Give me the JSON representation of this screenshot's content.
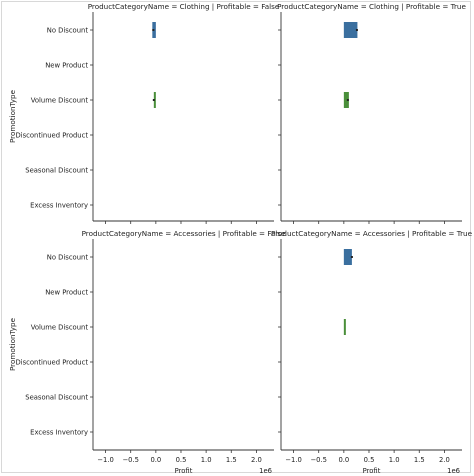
{
  "chart_data": {
    "type": "bar",
    "orientation": "horizontal",
    "figure_ylabel": "PromotionType",
    "categories": [
      "No Discount",
      "New Product",
      "Volume Discount",
      "Discontinued Product",
      "Seasonal Discount",
      "Excess Inventory"
    ],
    "xlabel": "Profit",
    "x_multiplier": "1e6",
    "xlim": [
      -1.25,
      2.35
    ],
    "xticks": [
      -1.0,
      -0.5,
      0.0,
      0.5,
      1.0,
      1.5,
      2.0
    ],
    "xtick_labels": [
      "−1.0",
      "−0.5",
      "0.0",
      "0.5",
      "1.0",
      "1.5",
      "2.0"
    ],
    "grid": false,
    "colors": {
      "No Discount": "#3a6f9f",
      "Volume Discount": "#4a8f3a",
      "error_bar": "#222222"
    },
    "panels": [
      {
        "title": "ProductCategoryName = Clothing | Profitable = False",
        "bars": [
          {
            "category": "No Discount",
            "start": -0.07,
            "end": 0.0,
            "point": -0.05
          },
          {
            "category": "Volume Discount",
            "start": -0.04,
            "end": 0.0,
            "point": -0.04
          }
        ]
      },
      {
        "title": "ProductCategoryName = Clothing | Profitable = True",
        "bars": [
          {
            "category": "No Discount",
            "start": 0.0,
            "end": 0.27,
            "point": 0.26
          },
          {
            "category": "Volume Discount",
            "start": 0.0,
            "end": 0.1,
            "point": 0.08
          }
        ]
      },
      {
        "title": "ProductCategoryName = Accessories | Profitable = False",
        "bars": []
      },
      {
        "title": "ProductCategoryName = Accessories | Profitable = True",
        "bars": [
          {
            "category": "No Discount",
            "start": 0.0,
            "end": 0.16,
            "point": 0.16
          },
          {
            "category": "Volume Discount",
            "start": 0.0,
            "end": 0.04,
            "point": null
          }
        ]
      }
    ]
  }
}
